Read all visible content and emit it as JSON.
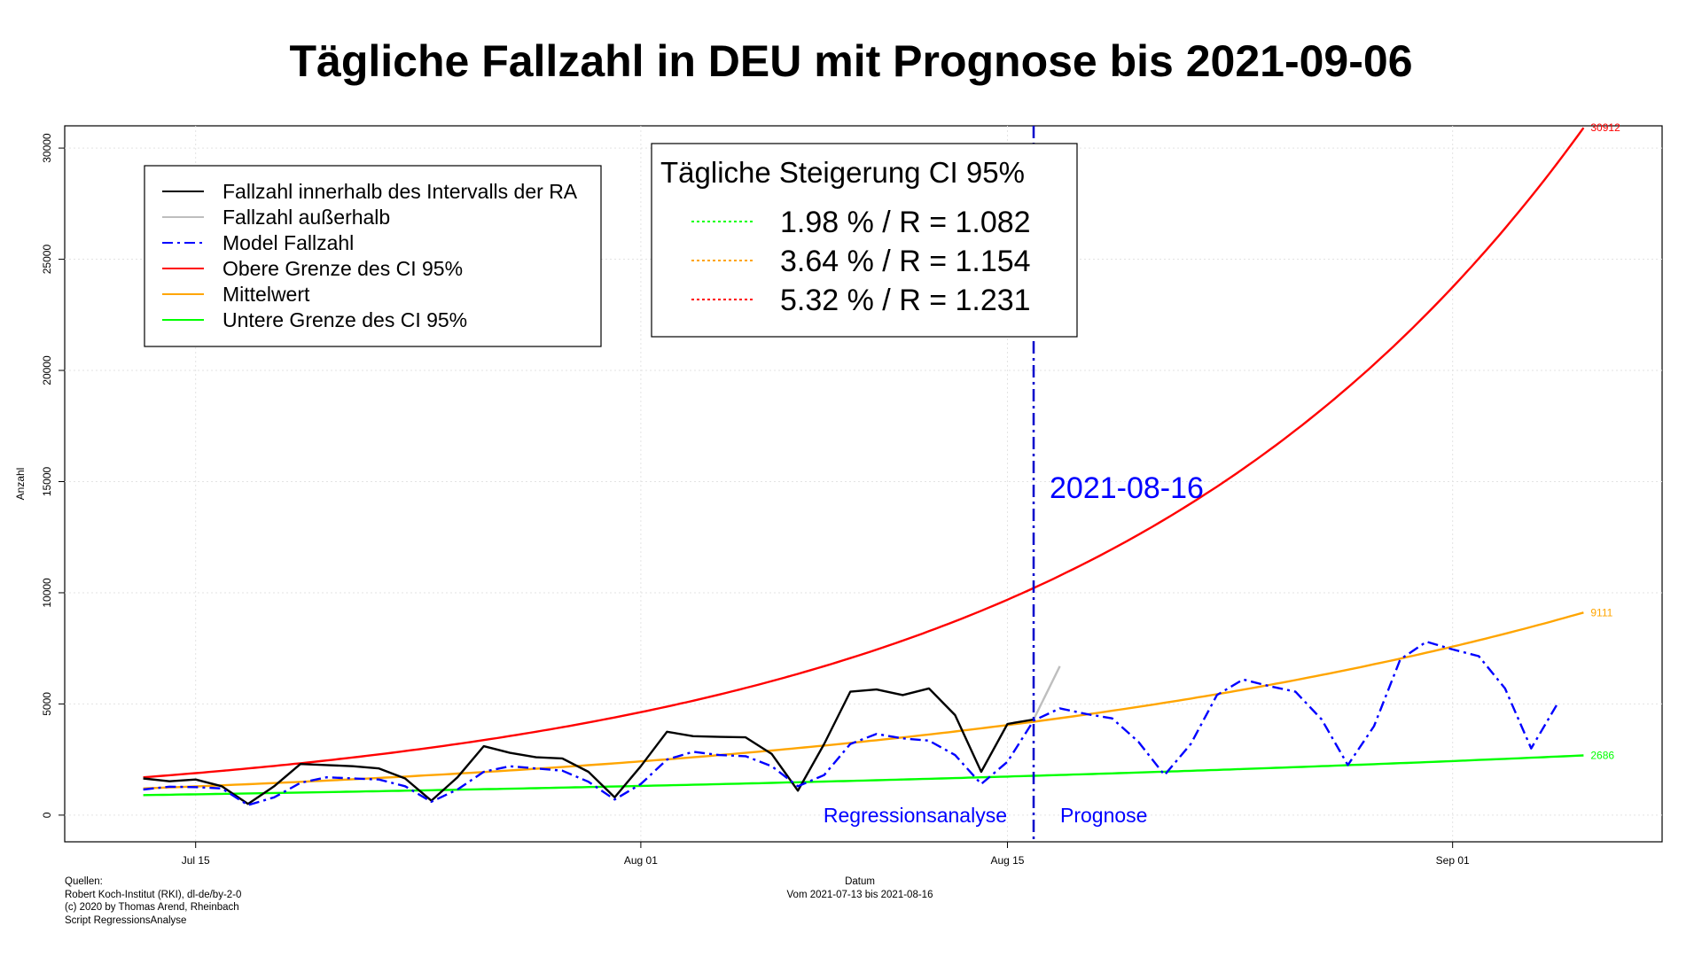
{
  "title": "Tägliche Fallzahl in DEU mit Prognose bis 2021-09-06",
  "legend": {
    "items": [
      {
        "label": "Fallzahl innerhalb des Intervalls der RA",
        "color": "#000000",
        "dash": "solid"
      },
      {
        "label": "Fallzahl außerhalb",
        "color": "#bebebe",
        "dash": "solid"
      },
      {
        "label": "Model Fallzahl",
        "color": "#0000ff",
        "dash": "dashdot"
      },
      {
        "label": "Obere Grenze des CI 95%",
        "color": "#ff0000",
        "dash": "solid"
      },
      {
        "label": "Mittelwert",
        "color": "#ffa500",
        "dash": "solid"
      },
      {
        "label": "Untere Grenze des CI 95%",
        "color": "#00ff00",
        "dash": "solid"
      }
    ]
  },
  "growth_box": {
    "title": "Tägliche Steigerung CI  95%",
    "rows": [
      {
        "text": "1.98 % / R = 1.082",
        "color": "#00ff00"
      },
      {
        "text": "3.64 % / R = 1.154",
        "color": "#ffa500"
      },
      {
        "text": "5.32 % / R = 1.231",
        "color": "#ff0000"
      }
    ]
  },
  "annotations": {
    "cutoff_date": "2021-08-16",
    "left_label": "Regressionsanalyse",
    "right_label": "Prognose"
  },
  "footer": {
    "sources_lines": [
      "Quellen:",
      "Robert Koch-Institut (RKI), dl-de/by-2-0",
      "(c) 2020 by Thomas Arend, Rheinbach",
      "Script RegressionsAnalyse"
    ],
    "xlabel_lines": [
      "Datum",
      "Vom 2021-07-13 bis 2021-08-16"
    ]
  },
  "colors": {
    "observed": "#000000",
    "outside": "#bebebe",
    "model": "#0000ff",
    "upper": "#ff0000",
    "mean": "#ffa500",
    "lower": "#00ff00",
    "cutoff_line": "#0000cc"
  },
  "chart_data": {
    "type": "line",
    "title": "Tägliche Fallzahl in DEU mit Prognose bis 2021-09-06",
    "xlabel": "Datum",
    "ylabel": "Anzahl",
    "xlim": [
      "2021-07-10",
      "2021-09-09"
    ],
    "ylim": [
      -1200,
      31000
    ],
    "x_ticks": [
      {
        "date": "2021-07-15",
        "label": "Jul 15"
      },
      {
        "date": "2021-08-01",
        "label": "Aug 01"
      },
      {
        "date": "2021-08-15",
        "label": "Aug 15"
      },
      {
        "date": "2021-09-01",
        "label": "Sep 01"
      }
    ],
    "y_ticks": [
      0,
      5000,
      10000,
      15000,
      20000,
      25000,
      30000
    ],
    "grid": true,
    "legend_position": "top-left",
    "cutoff_date": "2021-08-16",
    "end_labels": {
      "upper": "30912",
      "mean": "9111",
      "lower": "2686"
    },
    "series": [
      {
        "name": "Fallzahl innerhalb des Intervalls der RA",
        "color": "#000000",
        "dash": "solid",
        "x": [
          "2021-07-13",
          "2021-07-14",
          "2021-07-15",
          "2021-07-16",
          "2021-07-17",
          "2021-07-18",
          "2021-07-19",
          "2021-07-20",
          "2021-07-21",
          "2021-07-22",
          "2021-07-23",
          "2021-07-24",
          "2021-07-25",
          "2021-07-26",
          "2021-07-27",
          "2021-07-28",
          "2021-07-29",
          "2021-07-30",
          "2021-07-31",
          "2021-08-01",
          "2021-08-02",
          "2021-08-03",
          "2021-08-04",
          "2021-08-05",
          "2021-08-06",
          "2021-08-07",
          "2021-08-08",
          "2021-08-09",
          "2021-08-10",
          "2021-08-11",
          "2021-08-12",
          "2021-08-13",
          "2021-08-14",
          "2021-08-15",
          "2021-08-16"
        ],
        "y": [
          1650,
          1520,
          1600,
          1300,
          500,
          1300,
          2300,
          2250,
          2200,
          2100,
          1650,
          650,
          1700,
          3100,
          2800,
          2600,
          2550,
          1950,
          800,
          2200,
          3750,
          3550,
          3520,
          3500,
          2750,
          1100,
          3200,
          5550,
          5650,
          5400,
          5700,
          4500,
          1950,
          4100,
          4300
        ]
      },
      {
        "name": "Fallzahl außerhalb",
        "color": "#bebebe",
        "dash": "solid",
        "x": [
          "2021-08-16",
          "2021-08-17"
        ],
        "y": [
          4300,
          6700
        ]
      },
      {
        "name": "Model Fallzahl",
        "color": "#0000ff",
        "dash": "dashdot",
        "x": [
          "2021-07-13",
          "2021-07-14",
          "2021-07-15",
          "2021-07-16",
          "2021-07-17",
          "2021-07-18",
          "2021-07-19",
          "2021-07-20",
          "2021-07-21",
          "2021-07-22",
          "2021-07-23",
          "2021-07-24",
          "2021-07-25",
          "2021-07-26",
          "2021-07-27",
          "2021-07-28",
          "2021-07-29",
          "2021-07-30",
          "2021-07-31",
          "2021-08-01",
          "2021-08-02",
          "2021-08-03",
          "2021-08-04",
          "2021-08-05",
          "2021-08-06",
          "2021-08-07",
          "2021-08-08",
          "2021-08-09",
          "2021-08-10",
          "2021-08-11",
          "2021-08-12",
          "2021-08-13",
          "2021-08-14",
          "2021-08-15",
          "2021-08-16",
          "2021-08-17",
          "2021-08-18",
          "2021-08-19",
          "2021-08-20",
          "2021-08-21",
          "2021-08-22",
          "2021-08-23",
          "2021-08-24",
          "2021-08-25",
          "2021-08-26",
          "2021-08-27",
          "2021-08-28",
          "2021-08-29",
          "2021-08-30",
          "2021-08-31",
          "2021-09-01",
          "2021-09-02",
          "2021-09-03",
          "2021-09-04",
          "2021-09-05",
          "2021-09-06"
        ],
        "y": [
          1150,
          1280,
          1260,
          1200,
          450,
          800,
          1450,
          1700,
          1650,
          1600,
          1300,
          600,
          1150,
          1950,
          2200,
          2100,
          2000,
          1500,
          700,
          1400,
          2500,
          2850,
          2700,
          2650,
          2200,
          1300,
          1800,
          3200,
          3650,
          3450,
          3350,
          2700,
          1400,
          2400,
          4250,
          4800,
          4550,
          4350,
          3300,
          1800,
          3200,
          5400,
          6100,
          5800,
          5550,
          4300,
          2250,
          4000,
          7000,
          7800,
          7450,
          7150,
          5700,
          3000,
          5000,
          null
        ]
      },
      {
        "name": "Obere Grenze des CI 95%",
        "color": "#ff0000",
        "dash": "solid",
        "start": "2021-07-13",
        "end": "2021-09-06",
        "start_value": 1700,
        "end_value": 30912,
        "growth_pct": 5.32
      },
      {
        "name": "Mittelwert",
        "color": "#ffa500",
        "dash": "solid",
        "start": "2021-07-13",
        "end": "2021-09-06",
        "start_value": 1200,
        "end_value": 9111,
        "growth_pct": 3.64
      },
      {
        "name": "Untere Grenze des CI 95%",
        "color": "#00ff00",
        "dash": "solid",
        "start": "2021-07-13",
        "end": "2021-09-06",
        "start_value": 900,
        "end_value": 2686,
        "growth_pct": 1.98
      }
    ]
  }
}
